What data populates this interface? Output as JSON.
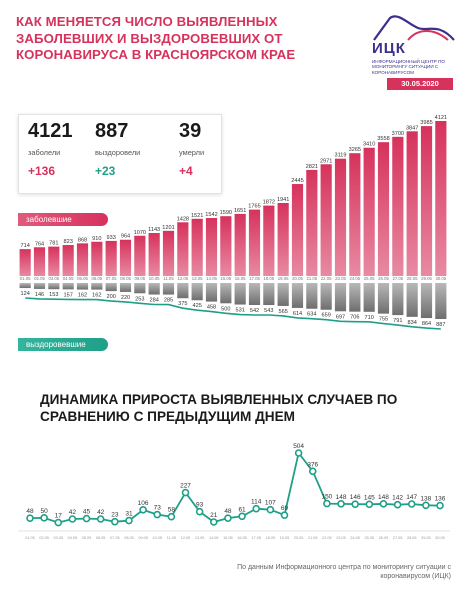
{
  "header": {
    "title": "Как меняется число выявленных заболевших и выздоровевших от коронавируса в Красноярском крае",
    "logo_name": "ИЦК",
    "logo_sub": "Информационный центр по мониторингу ситуации с коронавирусом",
    "date": "30.05.2020"
  },
  "stats": [
    {
      "value": "4121",
      "label": "заболели",
      "delta": "+136"
    },
    {
      "value": "887",
      "label": "выздоровели",
      "delta": "+23"
    },
    {
      "value": "39",
      "label": "умерли",
      "delta": "+4"
    }
  ],
  "labels": {
    "sick": "заболевшие",
    "recovered": "выздоровевшие"
  },
  "subtitle": "Динамика прироста выявленных случаев по сравнению с предыдущим днем",
  "footer": "По данным Информационного центра по мониторингу ситуации с коронавирусом (ИЦК)",
  "colors": {
    "accent": "#d6325c",
    "teal": "#1f9f88",
    "navy": "#3b2f8f"
  },
  "chart_data": [
    {
      "type": "bar",
      "categories": [
        "01.05",
        "02.05",
        "03.05",
        "04.05",
        "05.05",
        "06.05",
        "07.05",
        "08.05",
        "09.05",
        "10.05",
        "11.05",
        "12.05",
        "13.05",
        "14.05",
        "15.05",
        "16.05",
        "17.05",
        "18.05",
        "19.05",
        "20.05",
        "21.05",
        "22.05",
        "23.05",
        "24.05",
        "25.05",
        "26.05",
        "27.05",
        "28.05",
        "29.05",
        "30.05"
      ],
      "series": [
        {
          "name": "заболевшие",
          "values": [
            714,
            764,
            781,
            823,
            868,
            910,
            933,
            964,
            1070,
            1143,
            1201,
            1428,
            1521,
            1542,
            1590,
            1651,
            1765,
            1872,
            1941,
            2445,
            2821,
            2971,
            3119,
            3265,
            3410,
            3558,
            3700,
            3847,
            3985,
            4121
          ]
        },
        {
          "name": "выздоровевшие",
          "values": [
            124,
            146,
            153,
            157,
            162,
            162,
            200,
            220,
            253,
            284,
            285,
            375,
            425,
            458,
            500,
            531,
            542,
            543,
            565,
            614,
            634,
            659,
            697,
            706,
            710,
            755,
            791,
            834,
            864,
            887
          ]
        }
      ]
    },
    {
      "type": "line",
      "categories": [
        "01.05",
        "02.05",
        "03.05",
        "04.05",
        "05.05",
        "06.05",
        "07.05",
        "08.05",
        "09.05",
        "10.05",
        "11.05",
        "12.05",
        "13.05",
        "14.05",
        "15.05",
        "16.05",
        "17.05",
        "18.05",
        "19.05",
        "20.05",
        "21.05",
        "22.05",
        "23.05",
        "24.05",
        "25.05",
        "26.05",
        "27.05",
        "28.05",
        "29.05",
        "30.05"
      ],
      "values": [
        48,
        50,
        17,
        42,
        45,
        42,
        23,
        31,
        106,
        73,
        58,
        227,
        93,
        21,
        48,
        61,
        114,
        107,
        69,
        504,
        376,
        150,
        148,
        146,
        145,
        148,
        142,
        147,
        138,
        136
      ]
    }
  ]
}
